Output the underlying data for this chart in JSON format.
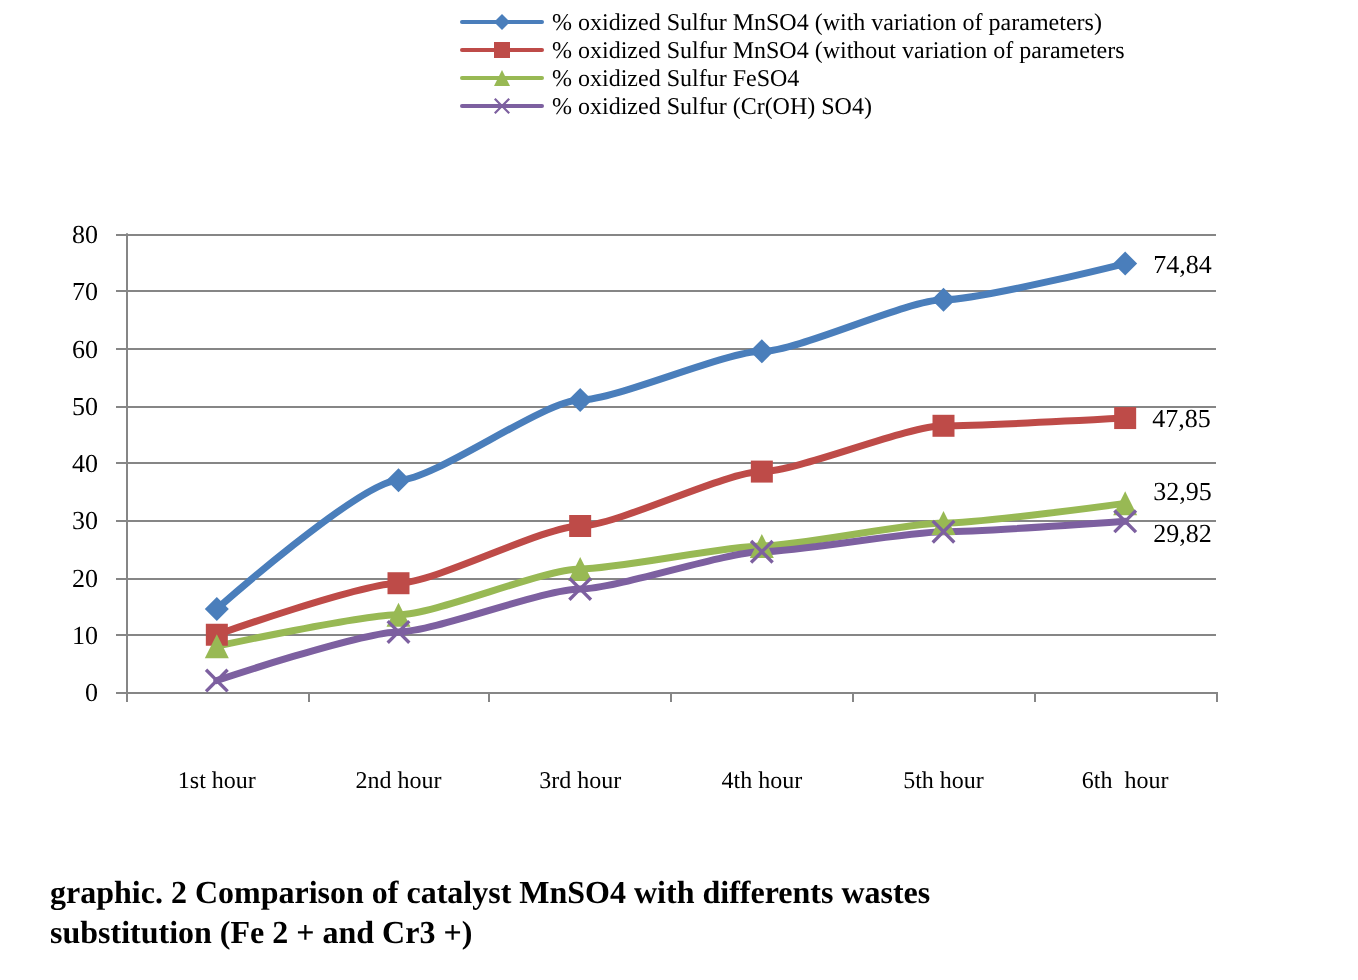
{
  "chart_data": {
    "type": "line",
    "title": "graphic. 2 Comparison of catalyst MnSO4 with differents wastes\nsubstitution (Fe 2 + and Cr3 +)",
    "categories": [
      "1st hour",
      "2nd hour",
      "3rd hour",
      "4th hour",
      "5th hour",
      "6th  hour"
    ],
    "series": [
      {
        "name": "% oxidized Sulfur MnSO4 (with variation of parameters)",
        "color": "#4a7ebb",
        "marker": "diamond",
        "values": [
          14.5,
          37,
          51,
          59.5,
          68.5,
          74.84
        ],
        "value_labels": [
          null,
          null,
          null,
          null,
          null,
          "74,84"
        ]
      },
      {
        "name": "% oxidized Sulfur MnSO4 (without variation of parameters",
        "color": "#be4b48",
        "marker": "square",
        "values": [
          10,
          19,
          29,
          38.5,
          46.5,
          47.85
        ],
        "value_labels": [
          null,
          null,
          null,
          null,
          null,
          "47,85"
        ]
      },
      {
        "name": "% oxidized Sulfur FeSO4",
        "color": "#98b954",
        "marker": "triangle",
        "values": [
          8,
          13.5,
          21.5,
          25.5,
          29.5,
          32.95
        ],
        "value_labels": [
          null,
          null,
          null,
          null,
          null,
          "32,95"
        ]
      },
      {
        "name": "% oxidized Sulfur (Cr(OH) SO4)",
        "color": "#7d60a0",
        "marker": "cross",
        "values": [
          2,
          10.5,
          18,
          24.5,
          28,
          29.82
        ],
        "value_labels": [
          null,
          null,
          null,
          null,
          null,
          "29,82"
        ]
      }
    ],
    "ylim": [
      0,
      80
    ],
    "yticks": [
      0,
      10,
      20,
      30,
      40,
      50,
      60,
      70,
      80
    ],
    "grid": "y",
    "legend": "top",
    "line_style": "solid"
  }
}
